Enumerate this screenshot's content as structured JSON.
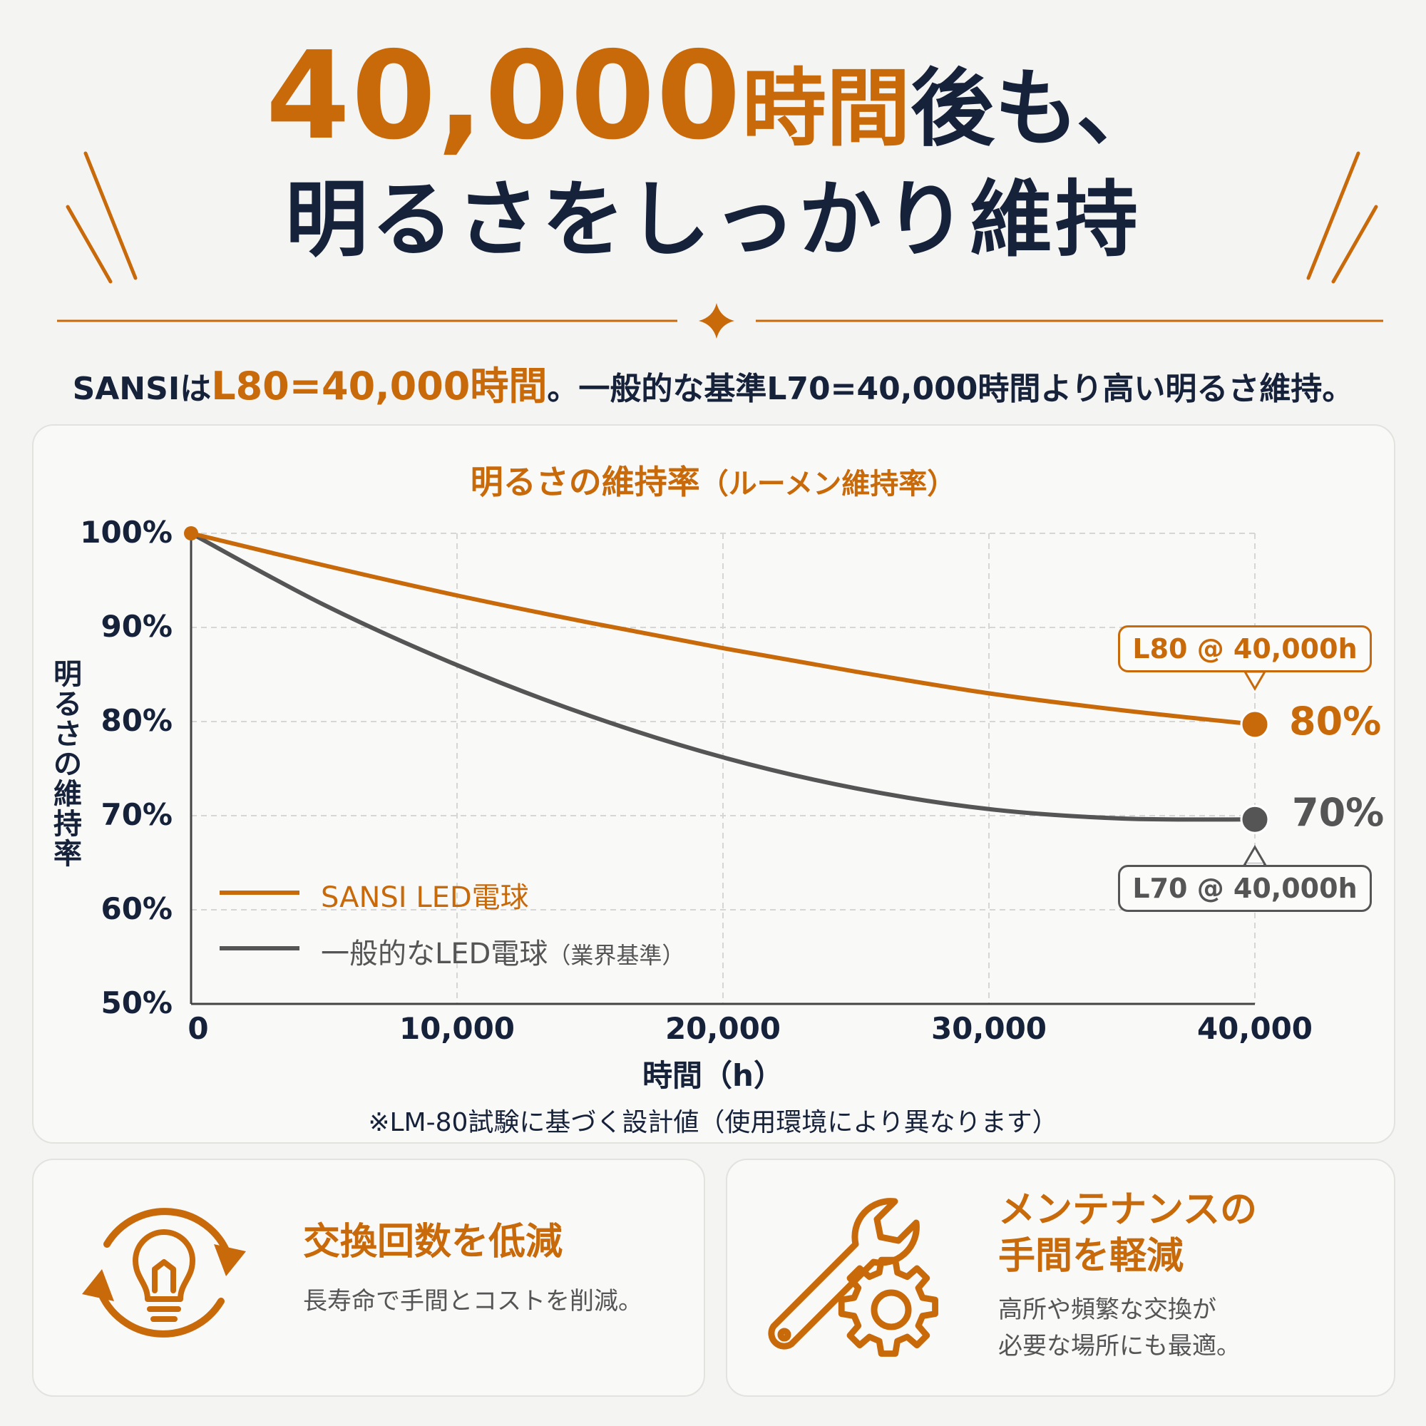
{
  "headline": {
    "number": "40,000",
    "unit": "時間",
    "suffix": "後も、",
    "line2": "明るさをしっかり維持"
  },
  "subline": {
    "brand": "SANSIは",
    "highlight": "L80=40,000時間",
    "rest": "。一般的な基準L70=40,000時間より高い明るさ維持。"
  },
  "chart_data": {
    "type": "line",
    "title": "明るさの維持率",
    "subtitle": "（ルーメン維持率）",
    "xlabel": "時間（h）",
    "ylabel": "明るさの維持率",
    "xlim": [
      0,
      40000
    ],
    "ylim": [
      50,
      100
    ],
    "x_ticks": [
      "0",
      "10,000",
      "20,000",
      "30,000",
      "40,000"
    ],
    "y_ticks": [
      "100%",
      "90%",
      "80%",
      "70%",
      "60%",
      "50%"
    ],
    "grid": true,
    "legend_position": "bottom-left",
    "series": [
      {
        "name": "SANSI LED電球",
        "color": "#c8690a",
        "x": [
          0,
          5000,
          10000,
          15000,
          20000,
          25000,
          30000,
          35000,
          40000
        ],
        "y": [
          100,
          96.6,
          93.4,
          90.5,
          87.8,
          85.3,
          83.0,
          81.2,
          79.7
        ],
        "end_label": "80%",
        "callout": "L80 @ 40,000h"
      },
      {
        "name": "一般的なLED電球",
        "name_note": "（業界基準）",
        "color": "#555555",
        "x": [
          0,
          5000,
          10000,
          15000,
          20000,
          25000,
          30000,
          35000,
          40000
        ],
        "y": [
          100,
          92.4,
          86.0,
          80.6,
          76.2,
          72.9,
          70.7,
          69.7,
          69.6
        ],
        "end_label": "70%",
        "callout": "L70 @ 40,000h"
      }
    ],
    "footnote": "※LM-80試験に基づく設計値（使用環境により異なります）"
  },
  "features": [
    {
      "icon": "lightbulb-cycle-icon",
      "title": "交換回数を低減",
      "desc": "長寿命で手間とコストを削減。"
    },
    {
      "icon": "wrench-gear-icon",
      "title_line1": "メンテナンスの",
      "title_line2": "手間を軽減",
      "desc_line1": "高所や頻繁な交換が",
      "desc_line2": "必要な場所にも最適。"
    }
  ],
  "colors": {
    "accent": "#c8690a",
    "dark": "#16213a",
    "gray": "#555555"
  }
}
